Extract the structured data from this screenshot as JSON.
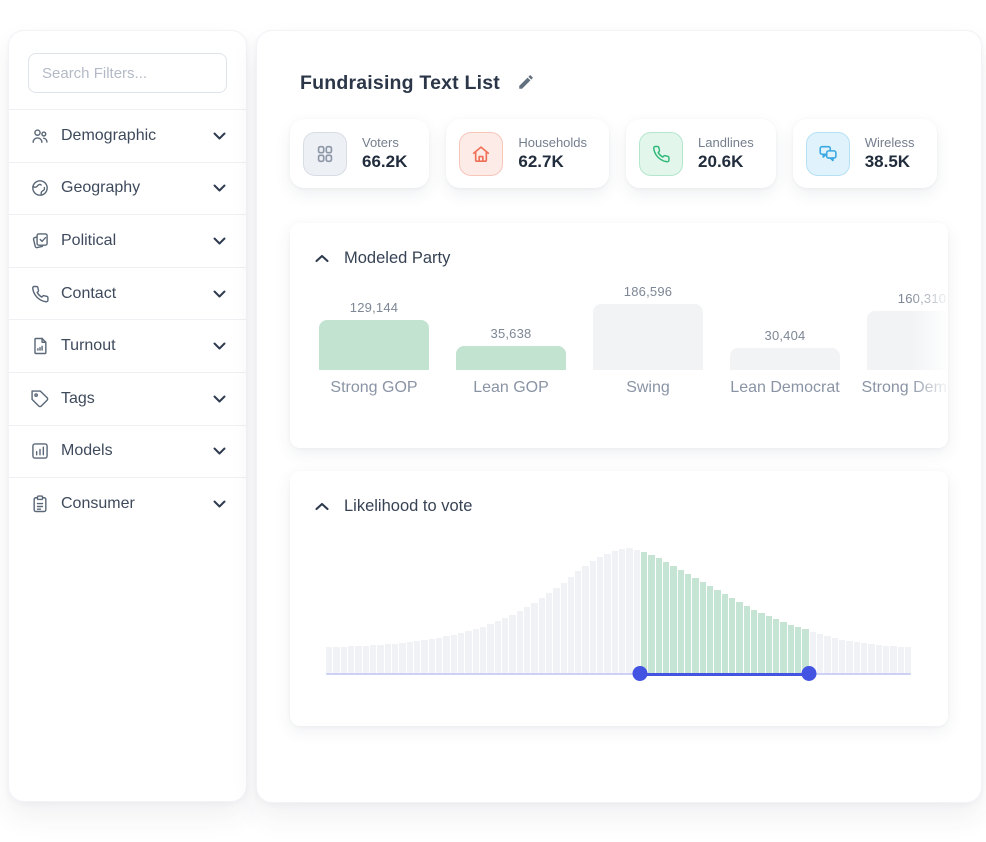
{
  "sidebar": {
    "search_placeholder": "Search Filters...",
    "items": [
      {
        "label": "Demographic",
        "icon": "people-icon"
      },
      {
        "label": "Geography",
        "icon": "globe-icon"
      },
      {
        "label": "Political",
        "icon": "ballot-icon"
      },
      {
        "label": "Contact",
        "icon": "phone-icon"
      },
      {
        "label": "Turnout",
        "icon": "report-icon"
      },
      {
        "label": "Tags",
        "icon": "tag-icon"
      },
      {
        "label": "Models",
        "icon": "bar-chart-icon"
      },
      {
        "label": "Consumer",
        "icon": "clipboard-icon"
      }
    ]
  },
  "header": {
    "title": "Fundraising Text List"
  },
  "stats": [
    {
      "label": "Voters",
      "value": "66.2K",
      "icon": "grid-icon",
      "color": "#8d97a8",
      "bg": "#edf0f4",
      "border": "#d8dde5"
    },
    {
      "label": "Households",
      "value": "62.7K",
      "icon": "home-icon",
      "color": "#ef7057",
      "bg": "#fdebe7",
      "border": "#f7c6ba"
    },
    {
      "label": "Landlines",
      "value": "20.6K",
      "icon": "phone-icon",
      "color": "#2eb878",
      "bg": "#e3f6ec",
      "border": "#b4e6cd"
    },
    {
      "label": "Wireless",
      "value": "38.5K",
      "icon": "chat-icon",
      "color": "#38a7e2",
      "bg": "#e0f3fc",
      "border": "#b5e0f4"
    }
  ],
  "panels": {
    "modeled_party": {
      "title": "Modeled Party"
    },
    "likelihood": {
      "title": "Likelihood to vote"
    }
  },
  "chart_data": [
    {
      "type": "bar",
      "title": "Modeled Party",
      "categories": [
        "Strong GOP",
        "Lean GOP",
        "Swing",
        "Lean Democrat",
        "Strong Democrat"
      ],
      "values": [
        129144,
        35638,
        186596,
        30404,
        160310
      ],
      "value_labels": [
        "129,144",
        "35,638",
        "186,596",
        "30,404",
        "160,310"
      ],
      "highlighted": [
        true,
        true,
        false,
        false,
        false
      ],
      "highlight_color": "#c3e3d1",
      "default_color": "#f2f3f5",
      "note": "right-most bar clipped by panel edge"
    },
    {
      "type": "area",
      "title": "Likelihood to vote",
      "values": [
        27,
        27,
        27,
        28,
        28,
        28,
        29,
        29,
        30,
        30,
        31,
        32,
        33,
        34,
        35,
        36,
        38,
        39,
        41,
        43,
        45,
        47,
        50,
        53,
        56,
        59,
        63,
        67,
        71,
        76,
        81,
        86,
        91,
        97,
        103,
        108,
        113,
        117,
        120,
        123,
        125,
        126,
        124,
        122,
        119,
        116,
        112,
        108,
        104,
        100,
        96,
        92,
        88,
        84,
        80,
        76,
        72,
        68,
        64,
        61,
        58,
        55,
        52,
        49,
        47,
        45,
        42,
        40,
        38,
        36,
        34,
        33,
        32,
        31,
        30,
        29,
        28,
        28,
        27,
        27
      ],
      "selected_indices": [
        43,
        65
      ],
      "selected_color": "#c5e4d3",
      "unselected_color": "#f1f2f5",
      "slider_color": "#4353e2",
      "track_color": "#cdd1f4",
      "legend": "distribution with range slider; selected band highlighted green"
    }
  ]
}
